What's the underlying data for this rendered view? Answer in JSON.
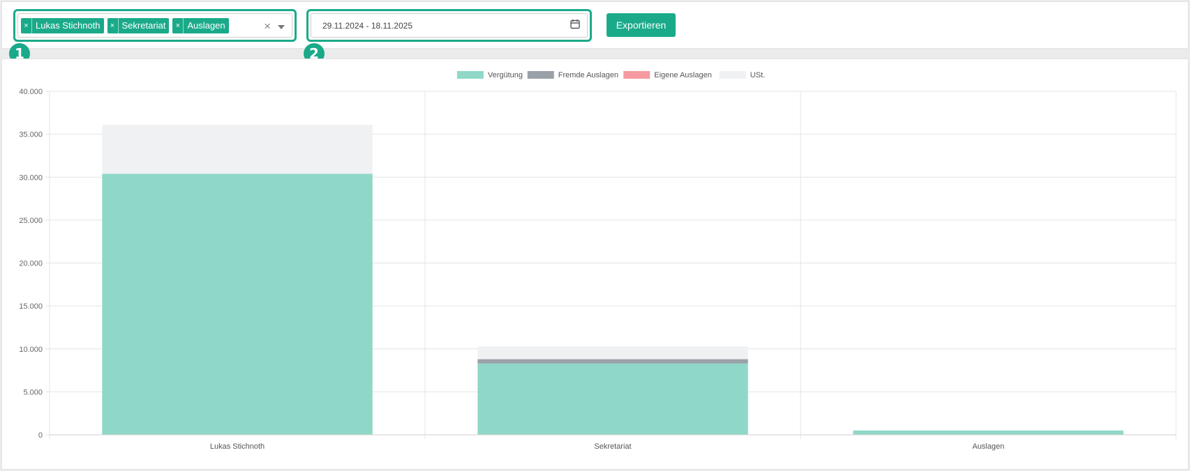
{
  "filter": {
    "tags": [
      {
        "label": "Lukas Stichnoth",
        "remove": "×"
      },
      {
        "label": "Sekretariat",
        "remove": "×"
      },
      {
        "label": "Auslagen",
        "remove": "×"
      }
    ],
    "clear_symbol": "×"
  },
  "date_range": {
    "value": "29.11.2024 - 18.11.2025"
  },
  "export_label": "Exportieren",
  "badges": [
    "1",
    "2"
  ],
  "accent": "#1aaa8a",
  "chart_data": {
    "type": "bar",
    "stacked": true,
    "categories": [
      "Lukas Stichnoth",
      "Sekretariat",
      "Auslagen"
    ],
    "series": [
      {
        "name": "Vergütung",
        "color": "#8fd8c8",
        "values": [
          30400,
          8300,
          500
        ]
      },
      {
        "name": "Fremde Auslagen",
        "color": "#9aa1a8",
        "values": [
          0,
          500,
          0
        ]
      },
      {
        "name": "Eigene Auslagen",
        "color": "#f49aa0",
        "values": [
          0,
          0,
          0
        ]
      },
      {
        "name": "USt.",
        "color": "#f0f1f3",
        "values": [
          5700,
          1500,
          0
        ]
      }
    ],
    "y_ticks": [
      "0",
      "5.000",
      "10.000",
      "15.000",
      "20.000",
      "25.000",
      "30.000",
      "35.000",
      "40.000"
    ],
    "ylim": [
      0,
      40000
    ],
    "legend_position": "top",
    "grid": true
  }
}
